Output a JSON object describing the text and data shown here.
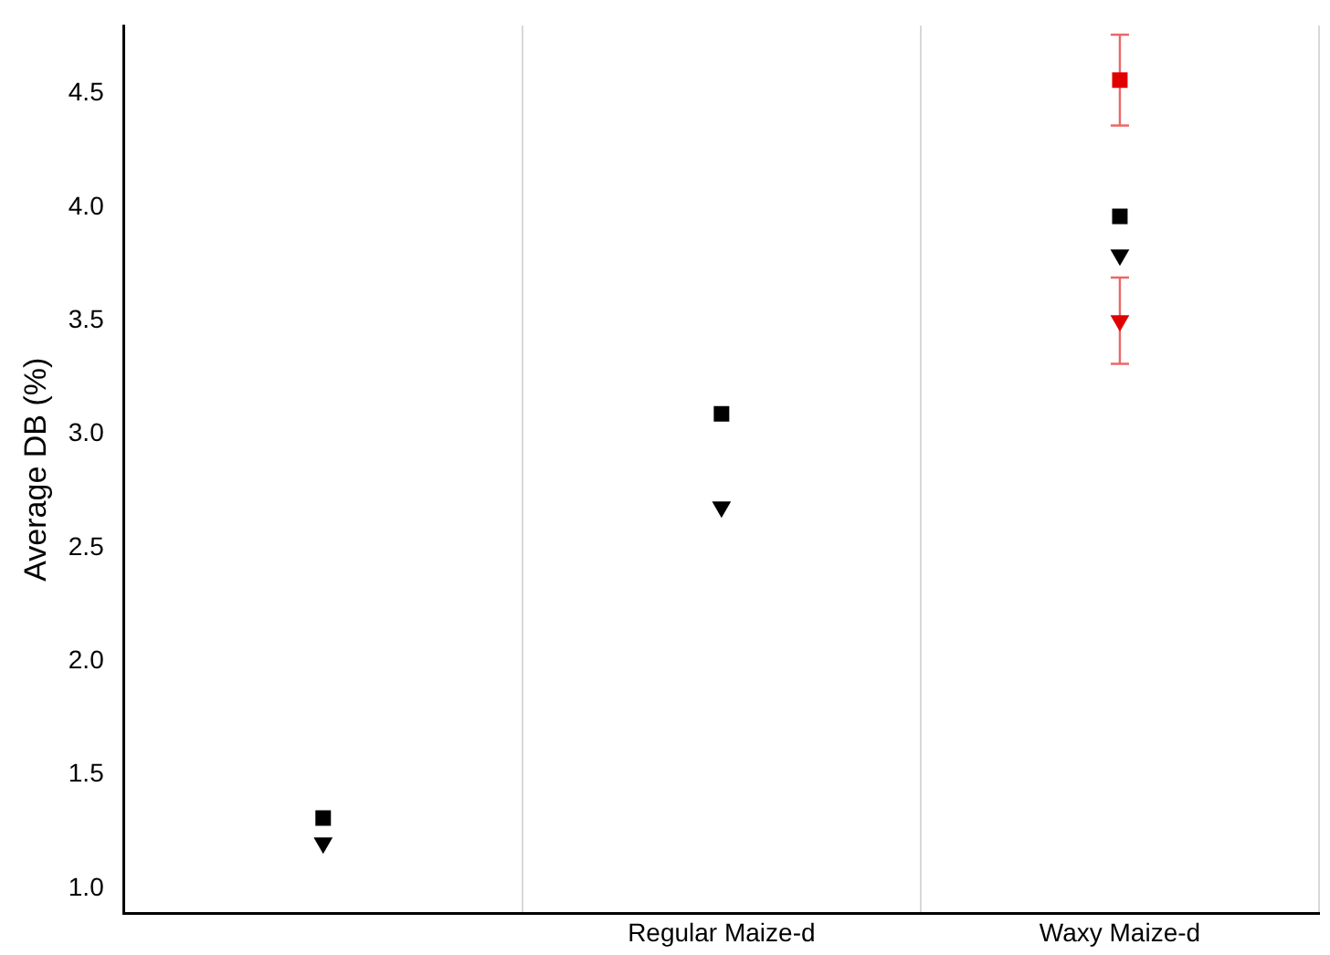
{
  "chart_data": {
    "type": "scatter",
    "ylabel": "Average DB (%)",
    "categories": [
      null,
      "Regular Maize-d",
      "Waxy Maize-d"
    ],
    "ylim": [
      0.89,
      4.8
    ],
    "yticks": [
      {
        "value": 1,
        "label": "1.0"
      },
      {
        "value": 1.5,
        "label": "1.5"
      },
      {
        "value": 2,
        "label": "2.0"
      },
      {
        "value": 2.5,
        "label": "2.5"
      },
      {
        "value": 3,
        "label": "3.0"
      },
      {
        "value": 3.5,
        "label": "3.5"
      },
      {
        "value": 4,
        "label": "4.0"
      },
      {
        "value": 4.5,
        "label": "4.5"
      }
    ],
    "grid": "x",
    "legend": false,
    "series": [
      {
        "color": "#000000",
        "marker": "square",
        "values": [
          1.31,
          3.09,
          3.96
        ]
      },
      {
        "color": "#000000",
        "marker": "triangle",
        "values": [
          1.2,
          2.68,
          3.79
        ]
      },
      {
        "color": "#e00000",
        "marker": "square",
        "values": [
          null,
          null,
          4.56
        ],
        "errors": [
          null,
          null,
          0.2
        ]
      },
      {
        "color": "#e00000",
        "marker": "triangle",
        "values": [
          null,
          null,
          3.5
        ],
        "errors": [
          null,
          null,
          0.19
        ]
      }
    ]
  }
}
